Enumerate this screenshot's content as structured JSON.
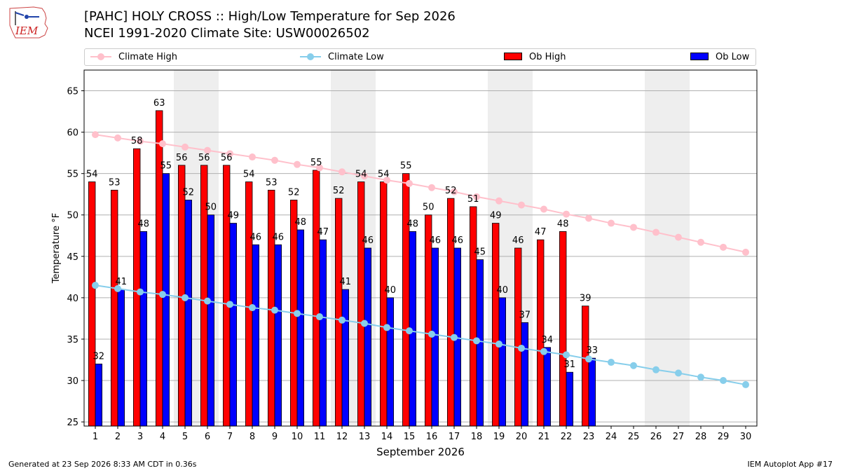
{
  "header": {
    "title_line1": "[PAHC] HOLY CROSS :: High/Low Temperature for Sep 2026",
    "title_line2": "NCEI 1991-2020 Climate Site: USW00026502",
    "logo_text": "IEM"
  },
  "footer": {
    "generated": "Generated at 23 Sep 2026 8:33 AM CDT in 0.36s",
    "app": "IEM Autoplot App #17"
  },
  "colors": {
    "climate_high": "#ffc0cb",
    "climate_low": "#87ceeb",
    "ob_high": "#ff0000",
    "ob_low": "#0000ff",
    "weekend_shade": "#eeeeee",
    "grid": "#b0b0b0"
  },
  "chart_data": {
    "type": "bar",
    "xlabel": "September 2026",
    "ylabel": "Temperature °F",
    "ylim": [
      24.5,
      67.5
    ],
    "xlim": [
      0.5,
      30.5
    ],
    "yticks": [
      25,
      30,
      35,
      40,
      45,
      50,
      55,
      60,
      65
    ],
    "legend_position": "top",
    "grid": "horizontal",
    "weekend_shaded_days": [
      5,
      6,
      12,
      13,
      19,
      20,
      26,
      27
    ],
    "days": [
      1,
      2,
      3,
      4,
      5,
      6,
      7,
      8,
      9,
      10,
      11,
      12,
      13,
      14,
      15,
      16,
      17,
      18,
      19,
      20,
      21,
      22,
      23,
      24,
      25,
      26,
      27,
      28,
      29,
      30
    ],
    "series": [
      {
        "name": "Climate High",
        "kind": "line",
        "values": [
          59.7,
          59.3,
          58.9,
          58.6,
          58.2,
          57.8,
          57.4,
          57.0,
          56.6,
          56.1,
          55.7,
          55.2,
          54.7,
          54.2,
          53.8,
          53.3,
          52.8,
          52.2,
          51.7,
          51.2,
          50.7,
          50.1,
          49.6,
          49.0,
          48.5,
          47.9,
          47.3,
          46.7,
          46.1,
          45.5
        ]
      },
      {
        "name": "Climate Low",
        "kind": "line",
        "values": [
          41.5,
          41.1,
          40.7,
          40.4,
          40.0,
          39.6,
          39.2,
          38.8,
          38.5,
          38.1,
          37.7,
          37.3,
          36.9,
          36.4,
          36.0,
          35.6,
          35.2,
          34.8,
          34.4,
          33.9,
          33.5,
          33.1,
          32.6,
          32.2,
          31.8,
          31.3,
          30.9,
          30.4,
          30.0,
          29.5
        ]
      },
      {
        "name": "Ob High",
        "kind": "bar",
        "values": [
          54,
          53,
          58,
          62.6,
          56,
          56,
          56,
          54,
          53,
          51.8,
          55.4,
          52,
          54,
          54,
          55,
          50,
          52,
          51,
          49,
          46,
          47,
          48,
          39
        ],
        "labels": [
          "54",
          "53",
          "58",
          "63",
          "56",
          "56",
          "56",
          "54",
          "53",
          "52",
          "55",
          "52",
          "54",
          "54",
          "55",
          "50",
          "52",
          "51",
          "49",
          "46",
          "47",
          "48",
          "39"
        ]
      },
      {
        "name": "Ob Low",
        "kind": "bar",
        "values": [
          32,
          41,
          48,
          55,
          51.8,
          50,
          49,
          46.4,
          46.4,
          48.2,
          47,
          41,
          46,
          40,
          48,
          46,
          46,
          44.6,
          40,
          37,
          34,
          31,
          32.7
        ],
        "labels": [
          "32",
          "41",
          "48",
          "55",
          "52",
          "50",
          "49",
          "46",
          "46",
          "48",
          "47",
          "41",
          "46",
          "40",
          "48",
          "46",
          "46",
          "45",
          "40",
          "37",
          "34",
          "31",
          "33"
        ]
      }
    ]
  }
}
